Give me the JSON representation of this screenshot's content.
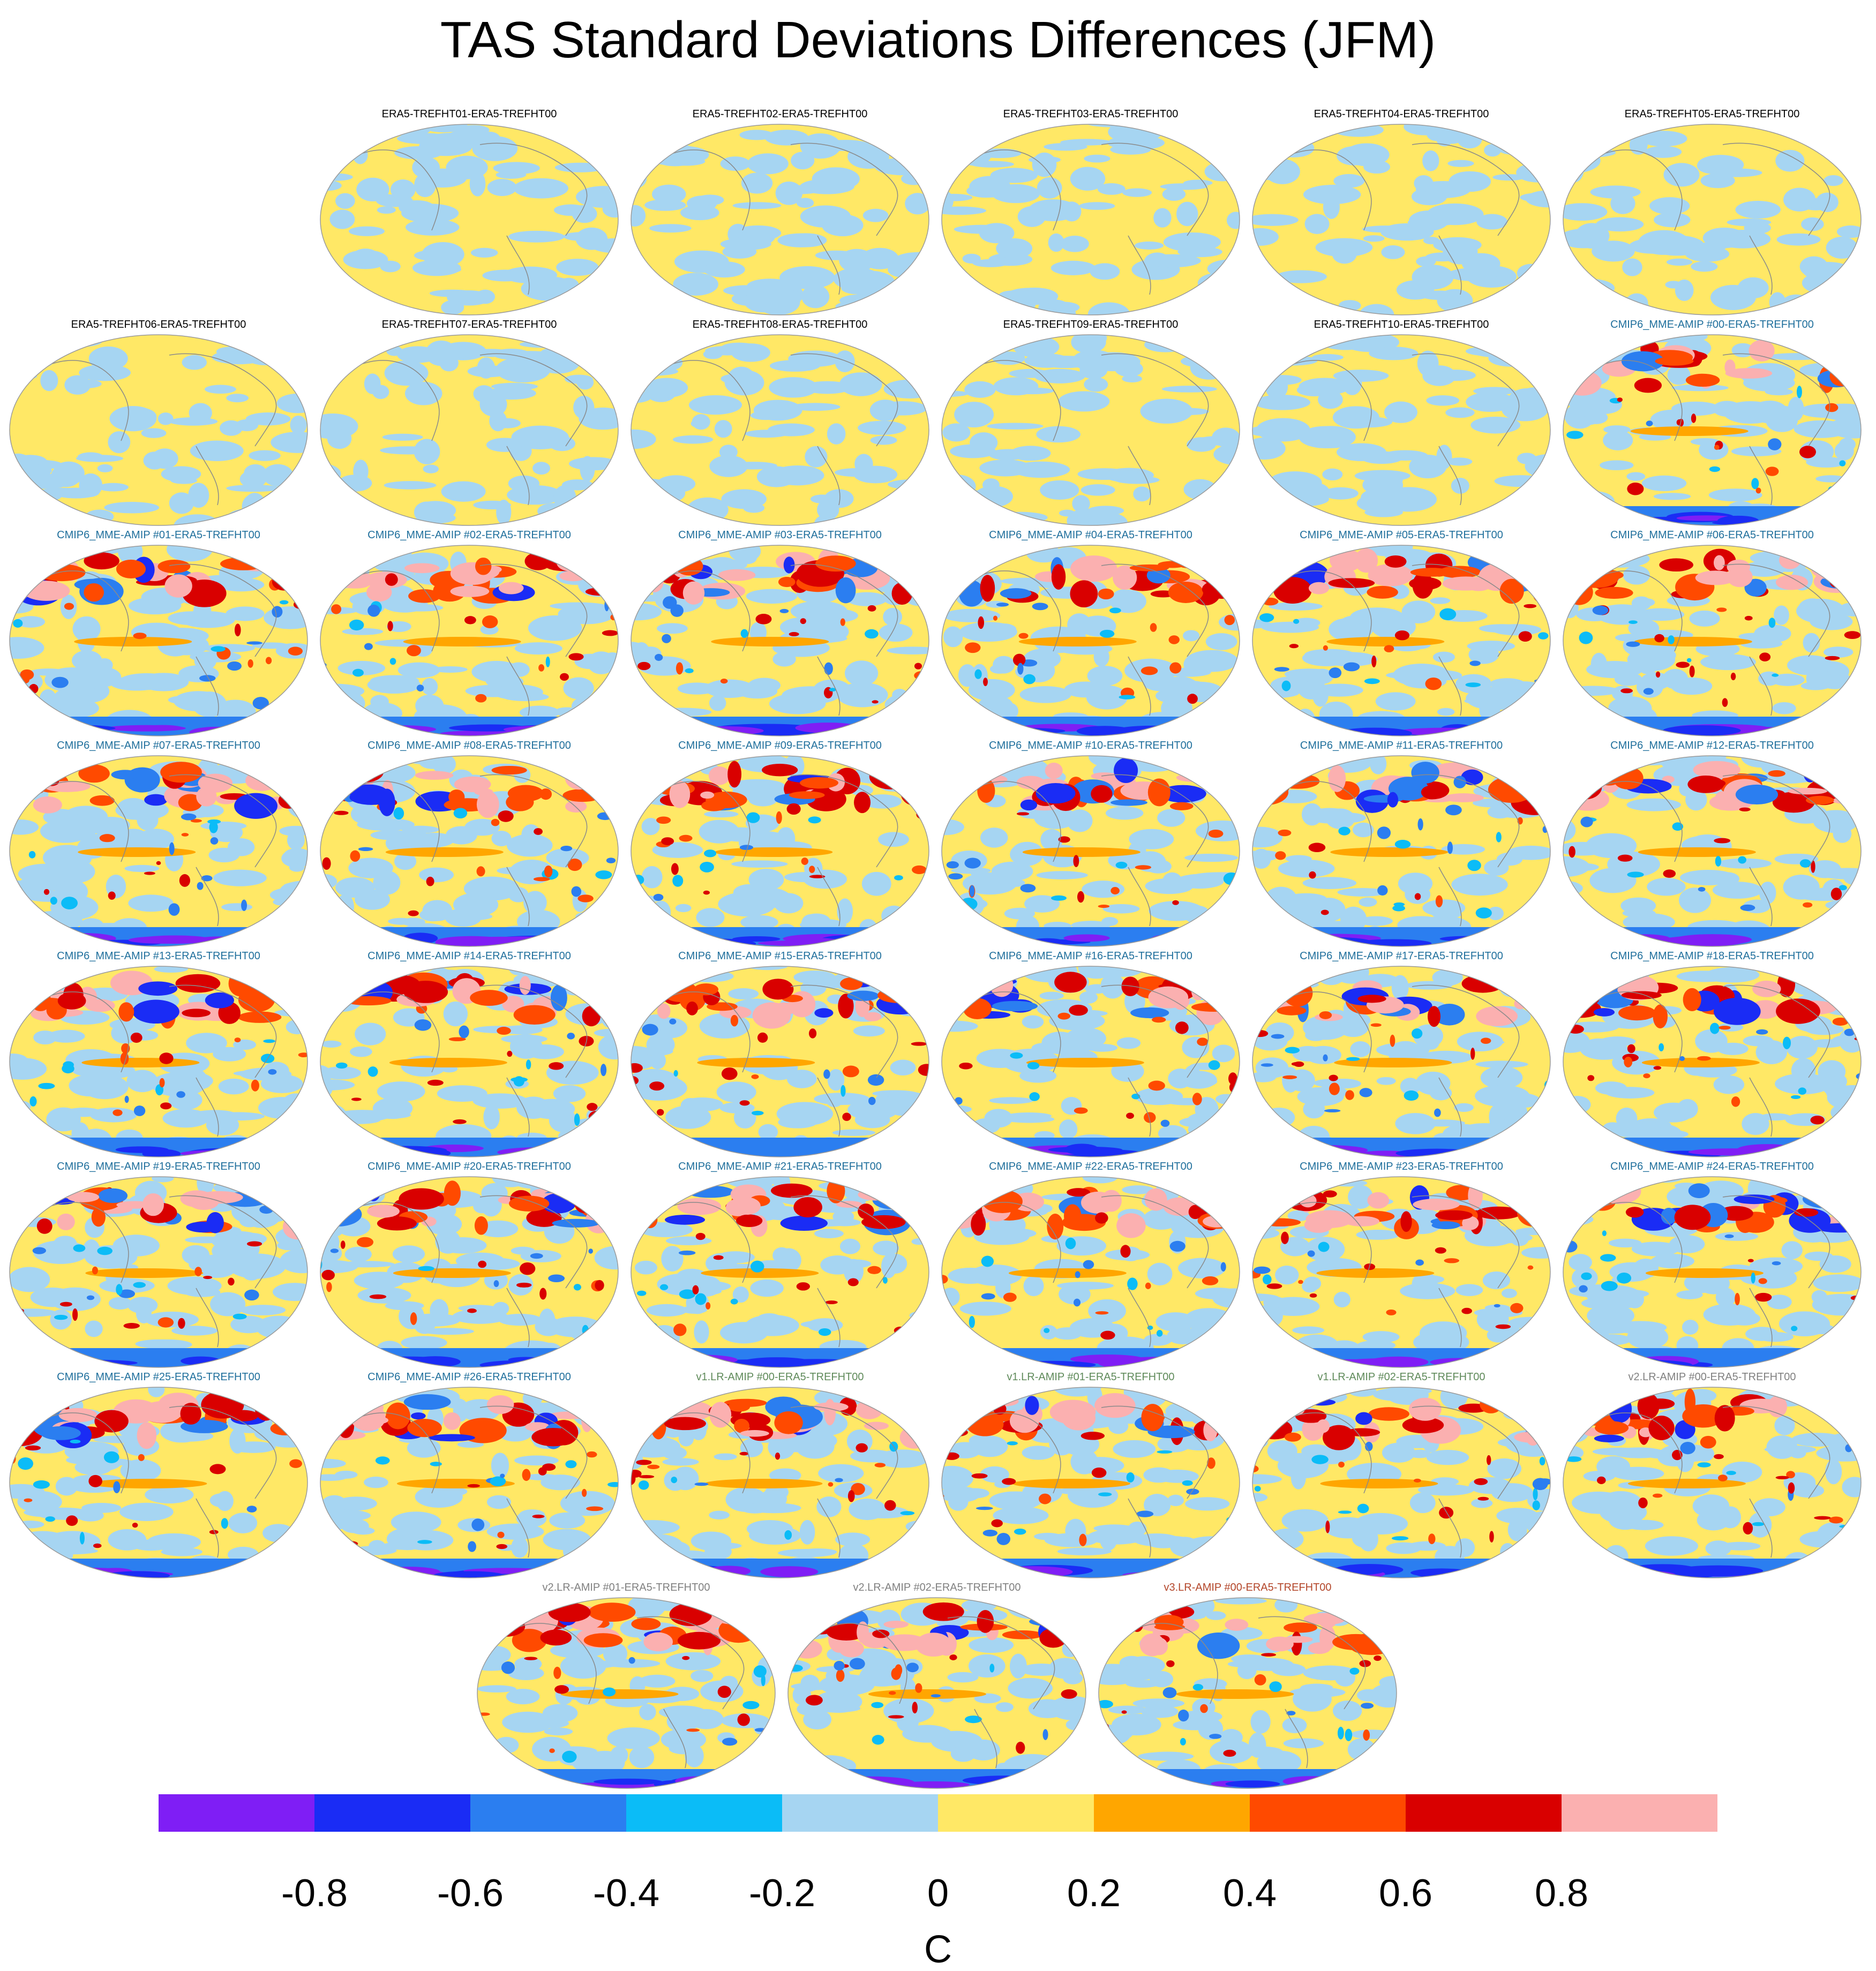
{
  "title": "TAS Standard Deviations Differences (JFM)",
  "colorbar": {
    "unit": "C",
    "tick_labels": [
      "-0.8",
      "-0.6",
      "-0.4",
      "-0.2",
      "0",
      "0.2",
      "0.4",
      "0.6",
      "0.8"
    ],
    "colors": [
      "#7f1ef5",
      "#1a2cf5",
      "#2b7ef0",
      "#0bbcf7",
      "#a6d5f2",
      "#ffe866",
      "#ffa600",
      "#ff4a00",
      "#d90000",
      "#fbb0b0"
    ]
  },
  "group_colors": {
    "ERA5": "#000000",
    "CMIP6": "#1f6f9c",
    "v1": "#5f8a5a",
    "v2": "#808080",
    "v3": "#b3462a"
  },
  "panels": [
    {
      "label": "ERA5-TREFHT01-ERA5-TREFHT00",
      "group": "ERA5",
      "intensity": 0.08
    },
    {
      "label": "ERA5-TREFHT02-ERA5-TREFHT00",
      "group": "ERA5",
      "intensity": 0.08
    },
    {
      "label": "ERA5-TREFHT03-ERA5-TREFHT00",
      "group": "ERA5",
      "intensity": 0.08
    },
    {
      "label": "ERA5-TREFHT04-ERA5-TREFHT00",
      "group": "ERA5",
      "intensity": 0.08
    },
    {
      "label": "ERA5-TREFHT05-ERA5-TREFHT00",
      "group": "ERA5",
      "intensity": 0.08
    },
    {
      "label": "ERA5-TREFHT06-ERA5-TREFHT00",
      "group": "ERA5",
      "intensity": 0.08
    },
    {
      "label": "ERA5-TREFHT07-ERA5-TREFHT00",
      "group": "ERA5",
      "intensity": 0.08
    },
    {
      "label": "ERA5-TREFHT08-ERA5-TREFHT00",
      "group": "ERA5",
      "intensity": 0.08
    },
    {
      "label": "ERA5-TREFHT09-ERA5-TREFHT00",
      "group": "ERA5",
      "intensity": 0.08
    },
    {
      "label": "ERA5-TREFHT10-ERA5-TREFHT00",
      "group": "ERA5",
      "intensity": 0.08
    },
    {
      "label": "CMIP6_MME-AMIP  #00-ERA5-TREFHT00",
      "group": "CMIP6",
      "intensity": 1
    },
    {
      "label": "CMIP6_MME-AMIP  #01-ERA5-TREFHT00",
      "group": "CMIP6",
      "intensity": 1
    },
    {
      "label": "CMIP6_MME-AMIP  #02-ERA5-TREFHT00",
      "group": "CMIP6",
      "intensity": 1
    },
    {
      "label": "CMIP6_MME-AMIP  #03-ERA5-TREFHT00",
      "group": "CMIP6",
      "intensity": 1
    },
    {
      "label": "CMIP6_MME-AMIP  #04-ERA5-TREFHT00",
      "group": "CMIP6",
      "intensity": 1
    },
    {
      "label": "CMIP6_MME-AMIP  #05-ERA5-TREFHT00",
      "group": "CMIP6",
      "intensity": 1
    },
    {
      "label": "CMIP6_MME-AMIP  #06-ERA5-TREFHT00",
      "group": "CMIP6",
      "intensity": 1
    },
    {
      "label": "CMIP6_MME-AMIP  #07-ERA5-TREFHT00",
      "group": "CMIP6",
      "intensity": 1
    },
    {
      "label": "CMIP6_MME-AMIP  #08-ERA5-TREFHT00",
      "group": "CMIP6",
      "intensity": 1
    },
    {
      "label": "CMIP6_MME-AMIP  #09-ERA5-TREFHT00",
      "group": "CMIP6",
      "intensity": 1
    },
    {
      "label": "CMIP6_MME-AMIP  #10-ERA5-TREFHT00",
      "group": "CMIP6",
      "intensity": 1
    },
    {
      "label": "CMIP6_MME-AMIP  #11-ERA5-TREFHT00",
      "group": "CMIP6",
      "intensity": 1
    },
    {
      "label": "CMIP6_MME-AMIP  #12-ERA5-TREFHT00",
      "group": "CMIP6",
      "intensity": 1
    },
    {
      "label": "CMIP6_MME-AMIP  #13-ERA5-TREFHT00",
      "group": "CMIP6",
      "intensity": 1
    },
    {
      "label": "CMIP6_MME-AMIP  #14-ERA5-TREFHT00",
      "group": "CMIP6",
      "intensity": 1
    },
    {
      "label": "CMIP6_MME-AMIP  #15-ERA5-TREFHT00",
      "group": "CMIP6",
      "intensity": 1
    },
    {
      "label": "CMIP6_MME-AMIP  #16-ERA5-TREFHT00",
      "group": "CMIP6",
      "intensity": 1
    },
    {
      "label": "CMIP6_MME-AMIP  #17-ERA5-TREFHT00",
      "group": "CMIP6",
      "intensity": 1
    },
    {
      "label": "CMIP6_MME-AMIP  #18-ERA5-TREFHT00",
      "group": "CMIP6",
      "intensity": 1
    },
    {
      "label": "CMIP6_MME-AMIP  #19-ERA5-TREFHT00",
      "group": "CMIP6",
      "intensity": 1
    },
    {
      "label": "CMIP6_MME-AMIP  #20-ERA5-TREFHT00",
      "group": "CMIP6",
      "intensity": 1
    },
    {
      "label": "CMIP6_MME-AMIP  #21-ERA5-TREFHT00",
      "group": "CMIP6",
      "intensity": 1
    },
    {
      "label": "CMIP6_MME-AMIP  #22-ERA5-TREFHT00",
      "group": "CMIP6",
      "intensity": 1
    },
    {
      "label": "CMIP6_MME-AMIP  #23-ERA5-TREFHT00",
      "group": "CMIP6",
      "intensity": 1
    },
    {
      "label": "CMIP6_MME-AMIP  #24-ERA5-TREFHT00",
      "group": "CMIP6",
      "intensity": 1
    },
    {
      "label": "CMIP6_MME-AMIP  #25-ERA5-TREFHT00",
      "group": "CMIP6",
      "intensity": 1
    },
    {
      "label": "CMIP6_MME-AMIP  #26-ERA5-TREFHT00",
      "group": "CMIP6",
      "intensity": 1
    },
    {
      "label": "v1.LR-AMIP  #00-ERA5-TREFHT00",
      "group": "v1",
      "intensity": 1
    },
    {
      "label": "v1.LR-AMIP  #01-ERA5-TREFHT00",
      "group": "v1",
      "intensity": 1
    },
    {
      "label": "v1.LR-AMIP  #02-ERA5-TREFHT00",
      "group": "v1",
      "intensity": 1
    },
    {
      "label": "v2.LR-AMIP  #00-ERA5-TREFHT00",
      "group": "v2",
      "intensity": 1
    },
    {
      "label": "v2.LR-AMIP  #01-ERA5-TREFHT00",
      "group": "v2",
      "intensity": 1
    },
    {
      "label": "v2.LR-AMIP  #02-ERA5-TREFHT00",
      "group": "v2",
      "intensity": 1
    },
    {
      "label": "v3.LR-AMIP  #00-ERA5-TREFHT00",
      "group": "v3",
      "intensity": 1
    }
  ]
}
